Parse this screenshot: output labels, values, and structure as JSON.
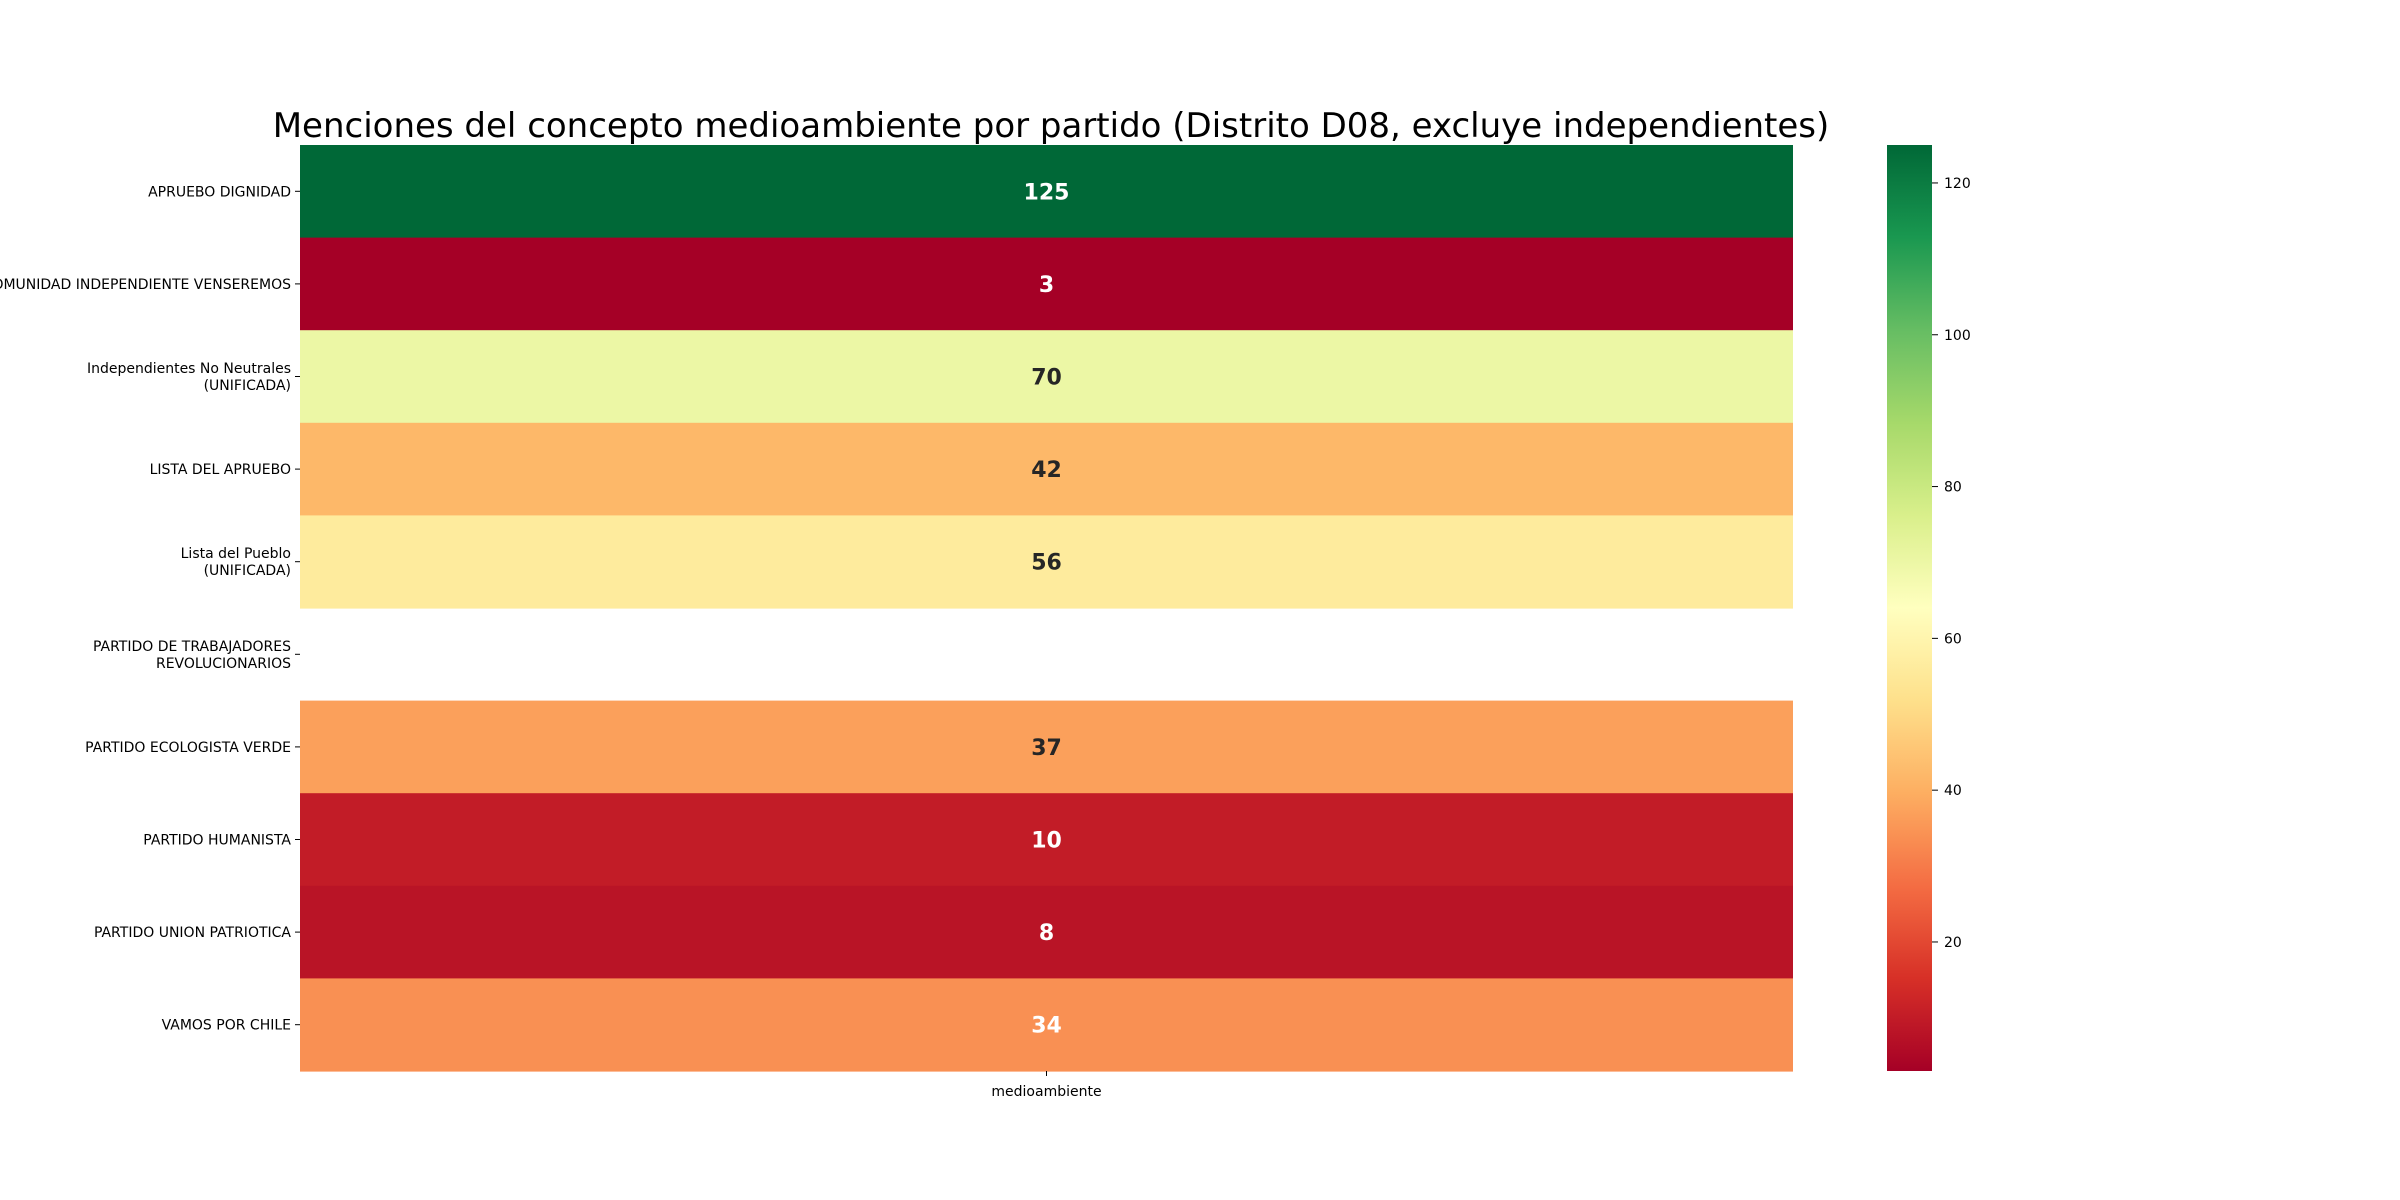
{
  "chart_data": {
    "type": "heatmap",
    "title": "Menciones del concepto medioambiente por partido (Distrito D08, excluye independientes)",
    "x_categories": [
      "medioambiente"
    ],
    "y_categories": [
      "APRUEBO DIGNIDAD",
      "COMUNIDAD INDEPENDIENTE VENSEREMOS",
      "Independientes No Neutrales\n(UNIFICADA)",
      "LISTA DEL APRUEBO",
      "Lista del Pueblo\n(UNIFICADA)",
      "PARTIDO DE TRABAJADORES\nREVOLUCIONARIOS",
      "PARTIDO ECOLOGISTA VERDE",
      "PARTIDO HUMANISTA",
      "PARTIDO UNION PATRIOTICA",
      "VAMOS POR CHILE"
    ],
    "values": [
      125,
      3,
      70,
      42,
      56,
      null,
      37,
      10,
      8,
      34
    ],
    "colormap": "RdYlGn",
    "vmin": 3,
    "vmax": 125,
    "colorbar_ticks": [
      20,
      40,
      60,
      80,
      100,
      120
    ]
  }
}
